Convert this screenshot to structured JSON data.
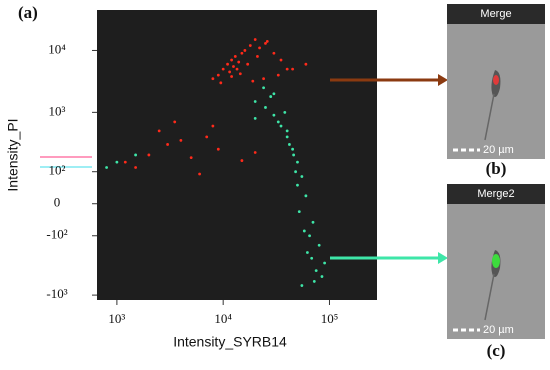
{
  "chart_data": {
    "type": "scatter",
    "panel_label": "(a)",
    "x_label": "Intensity_SYRB14",
    "y_label": "Intensity_PI",
    "x_scale": "log",
    "y_scale": "biexponential",
    "xlim": [
      650,
      280000
    ],
    "xticks": [
      {
        "value": 1000,
        "label": "10³"
      },
      {
        "value": 10000,
        "label": "10⁴"
      },
      {
        "value": 100000,
        "label": "10⁵"
      }
    ],
    "ylim": [
      -1200,
      45000
    ],
    "yticks": [
      {
        "value": -1000,
        "label": "-10³"
      },
      {
        "value": -100,
        "label": "-10²"
      },
      0,
      {
        "value": 100,
        "label": "10²"
      },
      {
        "value": 1000,
        "label": "10³"
      },
      {
        "value": 10000,
        "label": "10⁴"
      }
    ],
    "series": [
      {
        "color": "#ff2a1a",
        "x": [
          9000,
          10000,
          11000,
          12000,
          12500,
          13000,
          14000,
          15000,
          16000,
          18000,
          20000,
          22000,
          25000,
          30000,
          35000,
          40000,
          8000,
          11500,
          13500,
          17000,
          21000,
          26000,
          9500,
          12000,
          14500,
          19000,
          24000,
          33000,
          45000,
          60000,
          1200,
          2000,
          3000,
          5000,
          7000,
          9000,
          1500,
          2500,
          4000,
          6000,
          8000,
          15000,
          20000,
          3500
        ],
        "y": [
          4000,
          5000,
          6000,
          7000,
          5500,
          8000,
          6500,
          9000,
          10000,
          12000,
          15000,
          11000,
          13000,
          9000,
          7000,
          5000,
          3500,
          4500,
          5000,
          6000,
          8000,
          14000,
          3000,
          3800,
          4200,
          3200,
          3500,
          4000,
          5000,
          6000,
          150,
          200,
          300,
          180,
          400,
          250,
          120,
          500,
          350,
          90,
          600,
          160,
          220,
          700
        ]
      },
      {
        "color": "#3ee6a8",
        "x": [
          20000,
          25000,
          30000,
          35000,
          40000,
          45000,
          50000,
          55000,
          60000,
          70000,
          80000,
          90000,
          30000,
          38000,
          42000,
          48000,
          52000,
          65000,
          75000,
          28000,
          33000,
          46000,
          58000,
          68000,
          85000,
          40000,
          50000,
          62000,
          72000,
          55000,
          20000,
          24000,
          1000,
          1500,
          800
        ],
        "y": [
          1500,
          1200,
          900,
          600,
          400,
          250,
          150,
          80,
          20,
          -50,
          -150,
          -300,
          2000,
          1000,
          300,
          100,
          -20,
          -100,
          -400,
          1800,
          700,
          200,
          -80,
          -250,
          -500,
          500,
          50,
          -200,
          -600,
          -700,
          800,
          2500,
          150,
          200,
          120
        ]
      }
    ]
  },
  "images": [
    {
      "title": "Merge",
      "scale_label": "20 µm",
      "panel_label": "(b)"
    },
    {
      "title": "Merge2",
      "scale_label": "20 µm",
      "panel_label": "(c)"
    }
  ]
}
